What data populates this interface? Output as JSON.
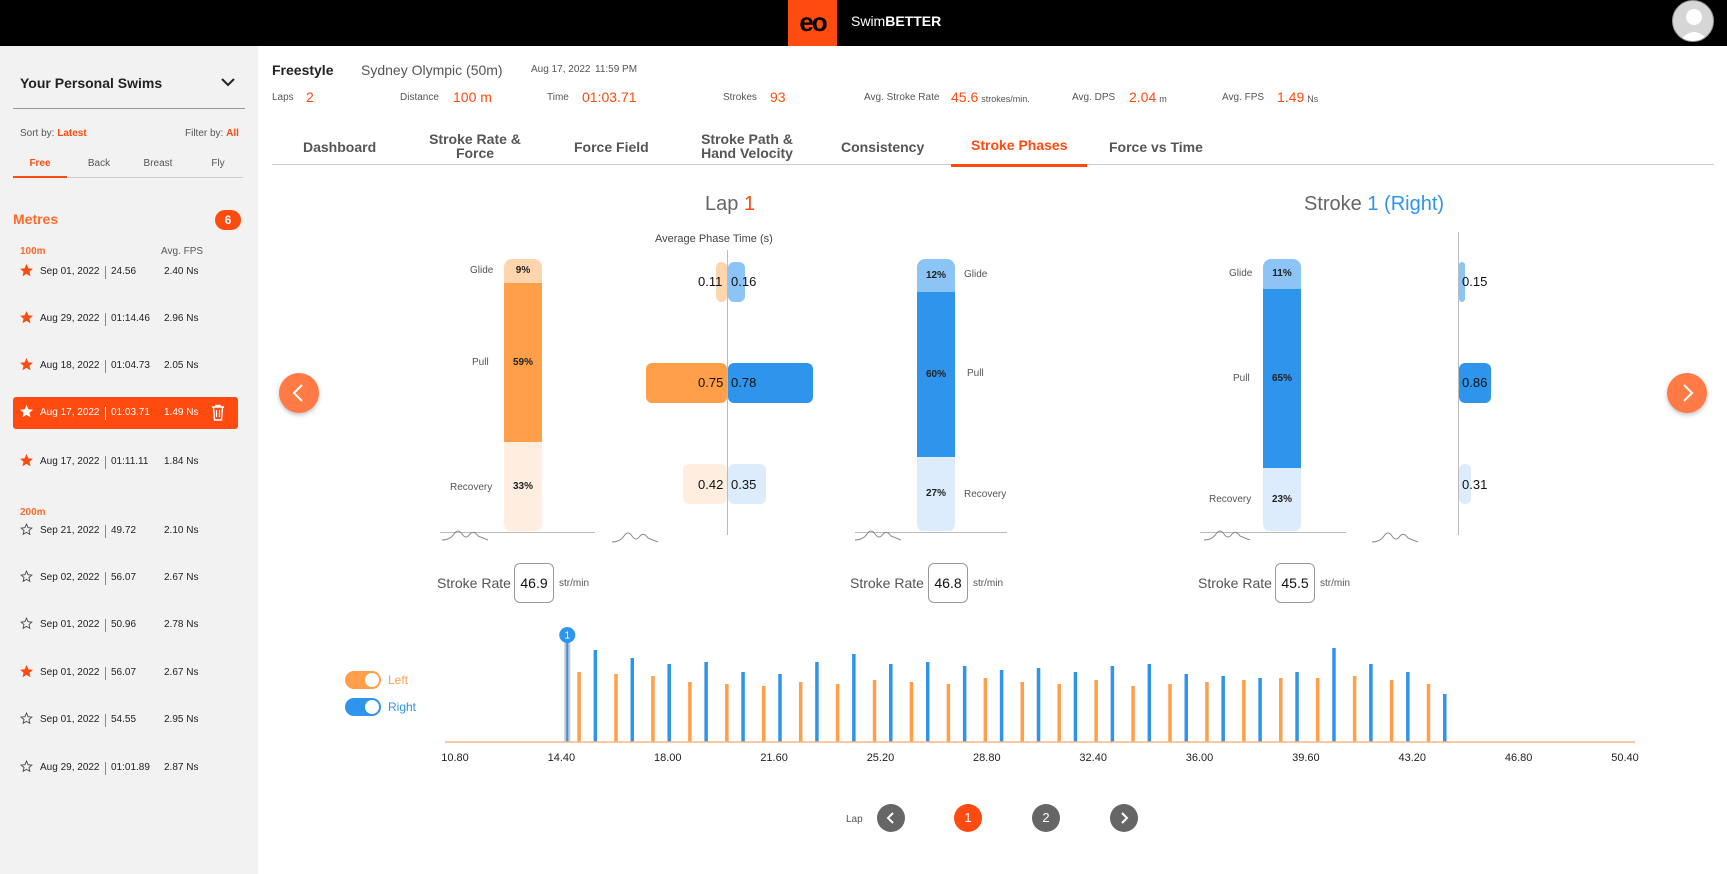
{
  "app": {
    "name_prefix": "Swim",
    "name_bold": "BETTER",
    "logo_text": "eo"
  },
  "sidebar": {
    "title": "Your Personal Swims",
    "sort_label": "Sort by:",
    "sort_value": "Latest",
    "filter_label": "Filter by:",
    "filter_value": "All",
    "stroke_tabs": [
      "Free",
      "Back",
      "Breast",
      "Fly"
    ],
    "metres_label": "Metres",
    "metres_count": "6",
    "fps_header": "Avg. FPS",
    "groups": [
      {
        "distance": "100m",
        "swims": [
          {
            "date": "Sep 01, 2022",
            "time": "24.56",
            "fps": "2.40 Ns",
            "starred": true
          },
          {
            "date": "Aug 29, 2022",
            "time": "01:14.46",
            "fps": "2.96 Ns",
            "starred": true
          },
          {
            "date": "Aug 18, 2022",
            "time": "01:04.73",
            "fps": "2.05 Ns",
            "starred": true
          },
          {
            "date": "Aug 17, 2022",
            "time": "01:03.71",
            "fps": "1.49 Ns",
            "starred": true,
            "selected": true
          },
          {
            "date": "Aug 17, 2022",
            "time": "01:11.11",
            "fps": "1.84 Ns",
            "starred": true
          }
        ]
      },
      {
        "distance": "200m",
        "swims": [
          {
            "date": "Sep 21, 2022",
            "time": "49.72",
            "fps": "2.10 Ns",
            "starred": false
          },
          {
            "date": "Sep 02, 2022",
            "time": "56.07",
            "fps": "2.67 Ns",
            "starred": false
          },
          {
            "date": "Sep 01, 2022",
            "time": "50.96",
            "fps": "2.78 Ns",
            "starred": false
          },
          {
            "date": "Sep 01, 2022",
            "time": "56.07",
            "fps": "2.67 Ns",
            "starred": true
          },
          {
            "date": "Sep 01, 2022",
            "time": "54.55",
            "fps": "2.95 Ns",
            "starred": false
          },
          {
            "date": "Aug 29, 2022",
            "time": "01:01.89",
            "fps": "2.87 Ns",
            "starred": false
          }
        ]
      }
    ]
  },
  "header": {
    "stroke": "Freestyle",
    "pool": "Sydney Olympic (50m)",
    "date": "Aug 17, 2022",
    "clock": "11:59 PM",
    "stats": [
      {
        "label": "Laps",
        "value": "2",
        "unit": ""
      },
      {
        "label": "Distance",
        "value": "100 m",
        "unit": ""
      },
      {
        "label": "Time",
        "value": "01:03.71",
        "unit": ""
      },
      {
        "label": "Strokes",
        "value": "93",
        "unit": ""
      },
      {
        "label": "Avg. Stroke Rate",
        "value": "45.6",
        "unit": "strokes/min."
      },
      {
        "label": "Avg. DPS",
        "value": "2.04",
        "unit": "m"
      },
      {
        "label": "Avg. FPS",
        "value": "1.49",
        "unit": "Ns"
      }
    ]
  },
  "tabs": [
    "Dashboard",
    "Stroke Rate & Force",
    "Force Field",
    "Stroke Path & Hand Velocity",
    "Consistency",
    "Stroke Phases",
    "Force vs Time"
  ],
  "active_tab": "Stroke Phases",
  "lap_panel": {
    "title": "Lap",
    "lap_number": "1",
    "avg_phase_title": "Average Phase Time (s)",
    "phases": [
      "Glide",
      "Pull",
      "Recovery"
    ],
    "left_pct": {
      "glide": "9%",
      "pull": "59%",
      "recovery": "33%"
    },
    "left_pct_values": [
      9,
      59,
      33
    ],
    "right_pct": {
      "glide": "12%",
      "pull": "60%",
      "recovery": "27%"
    },
    "right_pct_values": [
      12,
      60,
      27
    ],
    "avg_times_left": {
      "glide": "0.11",
      "pull": "0.75",
      "recovery": "0.42"
    },
    "avg_times_right": {
      "glide": "0.16",
      "pull": "0.78",
      "recovery": "0.35"
    },
    "stroke_rate_label": "Stroke Rate",
    "left_rate": "46.9",
    "right_rate": "46.8",
    "rate_unit": "str/min"
  },
  "stroke_panel": {
    "title": "Stroke",
    "stroke_number": "1 (Right)",
    "pct": {
      "glide": "11%",
      "pull": "65%",
      "recovery": "23%"
    },
    "pct_values": [
      11,
      65,
      23
    ],
    "times": {
      "glide": "0.15",
      "pull": "0.86",
      "recovery": "0.31"
    },
    "stroke_rate_label": "Stroke Rate",
    "rate": "45.5",
    "rate_unit": "str/min"
  },
  "timeline": {
    "left_label": "Left",
    "right_label": "Right",
    "marker": "1",
    "x_ticks": [
      "10.80",
      "14.40",
      "18.00",
      "21.60",
      "25.20",
      "28.80",
      "32.40",
      "36.00",
      "39.60",
      "43.20",
      "46.80",
      "50.40"
    ],
    "xlim": [
      10.8,
      50.4
    ]
  },
  "pager": {
    "label": "Lap",
    "pages": [
      "1",
      "2"
    ],
    "active": "1"
  },
  "colors": {
    "accent": "#ff4a10",
    "left": "#ff9f4a",
    "right": "#2f94ec"
  }
}
